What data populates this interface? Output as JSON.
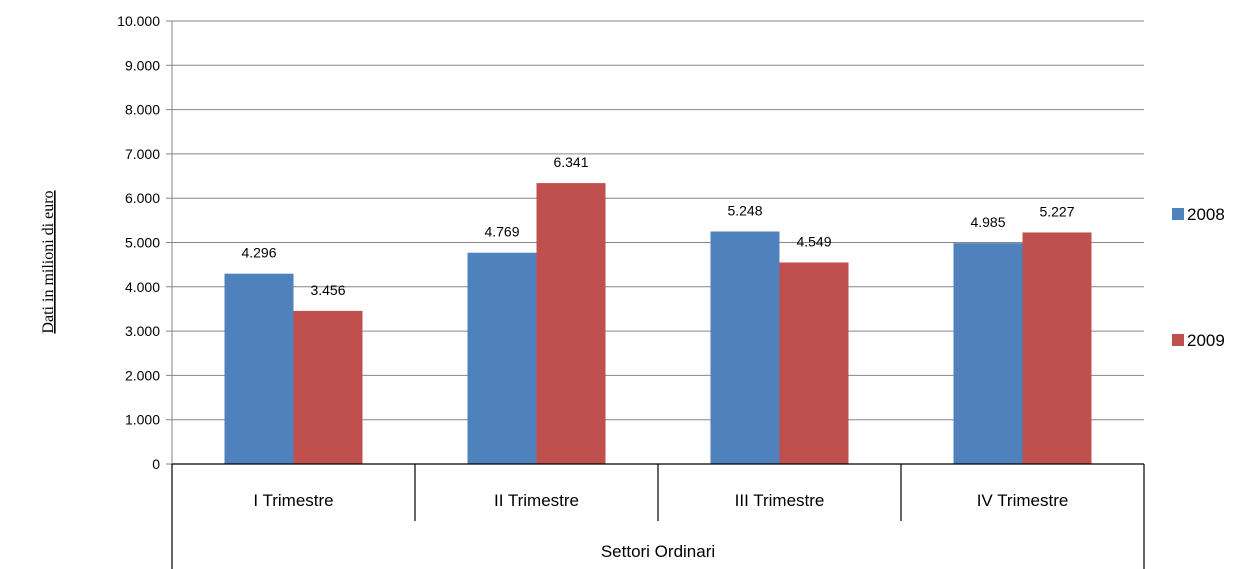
{
  "chart_data": {
    "type": "bar",
    "title": "",
    "ylabel": "Dati in milioni di euro",
    "group_label": "Settori Ordinari",
    "categories": [
      "I Trimestre",
      "II Trimestre",
      "III Trimestre",
      "IV Trimestre"
    ],
    "series": [
      {
        "name": "2008",
        "color": "#4F81BD",
        "values": [
          4296,
          4769,
          5248,
          4985
        ]
      },
      {
        "name": "2009",
        "color": "#C0504D",
        "values": [
          3456,
          6341,
          4549,
          5227
        ]
      }
    ],
    "data_labels": [
      [
        "4.296",
        "4.769",
        "5.248",
        "4.985"
      ],
      [
        "3.456",
        "6.341",
        "4.549",
        "5.227"
      ]
    ],
    "ylim": [
      0,
      10000
    ],
    "yticks": [
      0,
      1000,
      2000,
      3000,
      4000,
      5000,
      6000,
      7000,
      8000,
      9000,
      10000
    ],
    "ytick_labels": [
      "0",
      "1.000",
      "2.000",
      "3.000",
      "4.000",
      "5.000",
      "6.000",
      "7.000",
      "8.000",
      "9.000",
      "10.000"
    ],
    "grid": true,
    "legend_position": "right"
  }
}
